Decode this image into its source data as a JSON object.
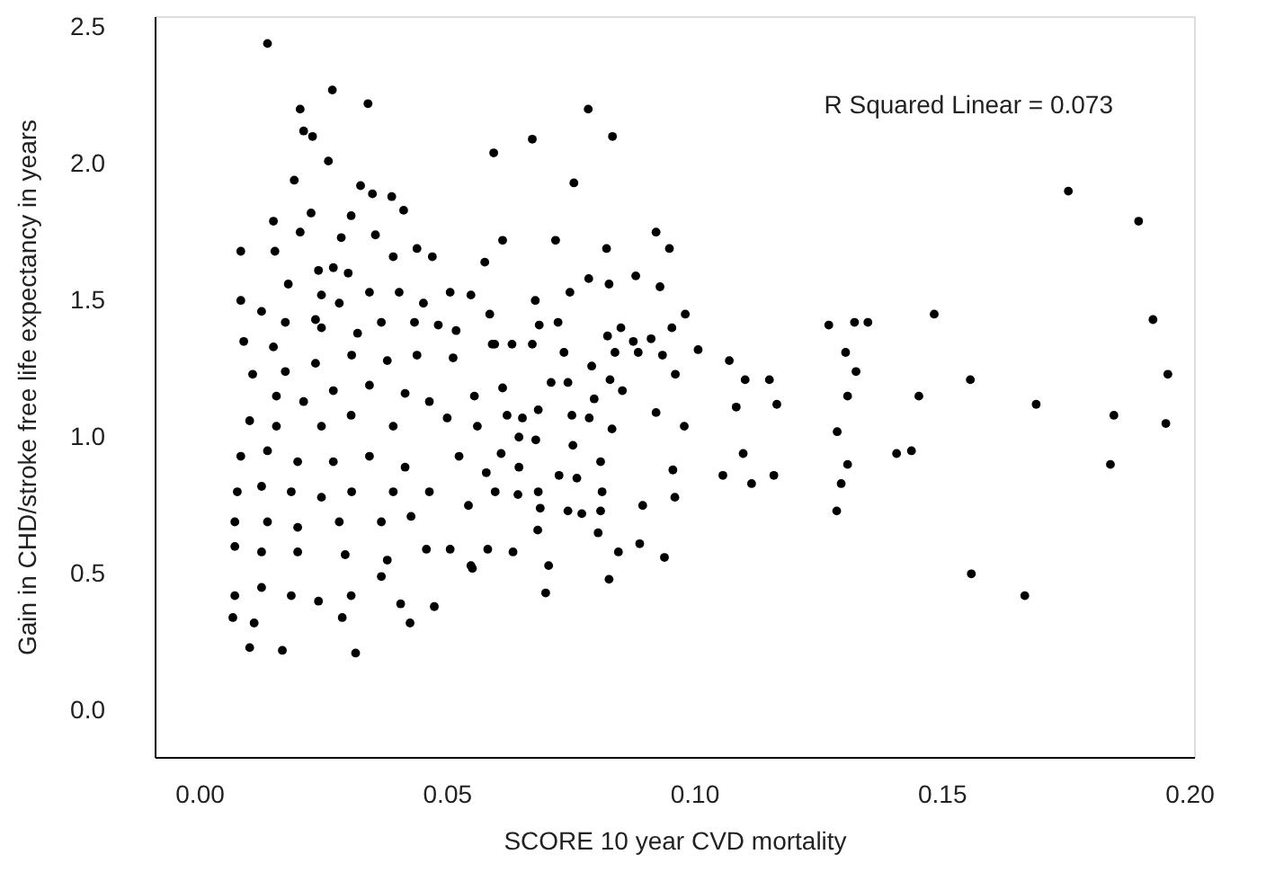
{
  "chart_data": {
    "type": "scatter",
    "xlabel": "SCORE 10 year CVD mortality",
    "ylabel": "Gain in CHD/stroke free life expectancy in years",
    "annotations": [
      "R Squared Linear = 0.073"
    ],
    "xlim": [
      -0.009,
      0.201
    ],
    "ylim": [
      -0.17,
      2.54
    ],
    "xticks": [
      {
        "value": 0,
        "label": "0.00"
      },
      {
        "value": 0.05,
        "label": "0.05"
      },
      {
        "value": 0.1,
        "label": "0.10"
      },
      {
        "value": 0.15,
        "label": "0.15"
      },
      {
        "value": 0.2,
        "label": "0.20"
      }
    ],
    "yticks": [
      {
        "value": 0,
        "label": "0.0"
      },
      {
        "value": 0.5,
        "label": "0.5"
      },
      {
        "value": 1,
        "label": "1.0"
      },
      {
        "value": 1.5,
        "label": "1.5"
      },
      {
        "value": 2,
        "label": "2.0"
      },
      {
        "value": 2.5,
        "label": "2.5"
      }
    ],
    "grid": false,
    "marker": "circle",
    "series": [
      {
        "color": "#000000",
        "x": [
          0.1756,
          0.1898,
          0.1927,
          0.1957,
          0.1953,
          0.1848,
          0.1841,
          0.1691,
          0.1668,
          0.156,
          0.1558,
          0.1485,
          0.1454,
          0.1439,
          0.1409,
          0.1351,
          0.1324,
          0.1272,
          0.1306,
          0.1327,
          0.131,
          0.1289,
          0.131,
          0.1297,
          0.1288,
          0.1167,
          0.1152,
          0.1103,
          0.1071,
          0.1085,
          0.1099,
          0.1116,
          0.1161,
          0.1058,
          0.1008,
          0.0982,
          0.095,
          0.0923,
          0.0955,
          0.0962,
          0.098,
          0.0957,
          0.0961,
          0.094,
          0.089,
          0.0896,
          0.0923,
          0.0936,
          0.0913,
          0.0931,
          0.0882,
          0.0828,
          0.0823,
          0.0787,
          0.0786,
          0.0835,
          0.0757,
          0.0673,
          0.0595,
          0.0613,
          0.072,
          0.0749,
          0.0679,
          0.0725,
          0.0687,
          0.0852,
          0.0825,
          0.0877,
          0.084,
          0.0887,
          0.0737,
          0.0673,
          0.0632,
          0.0597,
          0.0793,
          0.0745,
          0.0711,
          0.083,
          0.0855,
          0.0798,
          0.0685,
          0.0653,
          0.0753,
          0.0788,
          0.0834,
          0.068,
          0.0755,
          0.0811,
          0.0727,
          0.0763,
          0.0814,
          0.0685,
          0.0689,
          0.0745,
          0.0773,
          0.0811,
          0.0806,
          0.0684,
          0.0847,
          0.0706,
          0.0828,
          0.07,
          0.0634,
          0.0583,
          0.0552,
          0.0598,
          0.0644,
          0.0646,
          0.061,
          0.0646,
          0.0622,
          0.0613,
          0.0592,
          0.0587,
          0.0577,
          0.0138,
          0.0269,
          0.0204,
          0.0341,
          0.0211,
          0.0229,
          0.0261,
          0.0192,
          0.015,
          0.0226,
          0.0204,
          0.0326,
          0.035,
          0.0389,
          0.0413,
          0.0307,
          0.0287,
          0.0356,
          0.0084,
          0.0153,
          0.044,
          0.0471,
          0.0392,
          0.0241,
          0.0271,
          0.0301,
          0.0084,
          0.018,
          0.0247,
          0.0344,
          0.0404,
          0.0507,
          0.0549,
          0.0126,
          0.0174,
          0.0235,
          0.0283,
          0.0453,
          0.009,
          0.015,
          0.0247,
          0.032,
          0.0368,
          0.0435,
          0.0483,
          0.0519,
          0.0108,
          0.0174,
          0.0235,
          0.0308,
          0.038,
          0.044,
          0.0513,
          0.0156,
          0.0211,
          0.0271,
          0.0344,
          0.0416,
          0.0465,
          0.0556,
          0.0102,
          0.0156,
          0.0247,
          0.0307,
          0.0392,
          0.0501,
          0.0562,
          0.0084,
          0.0138,
          0.0199,
          0.0271,
          0.0344,
          0.0416,
          0.0525,
          0.058,
          0.0077,
          0.0126,
          0.0186,
          0.0247,
          0.0308,
          0.0392,
          0.0465,
          0.0544,
          0.0072,
          0.0138,
          0.0199,
          0.0283,
          0.0368,
          0.0428,
          0.0072,
          0.0126,
          0.0199,
          0.0295,
          0.038,
          0.0459,
          0.0507,
          0.0072,
          0.0126,
          0.0186,
          0.0241,
          0.0307,
          0.0368,
          0.0068,
          0.0111,
          0.0289,
          0.0407,
          0.0426,
          0.0475,
          0.0549,
          0.0102,
          0.0168,
          0.0316
        ],
        "values": [
          1.9,
          1.79,
          1.43,
          1.23,
          1.05,
          1.08,
          0.9,
          1.12,
          0.42,
          0.5,
          1.21,
          1.45,
          1.15,
          0.95,
          0.94,
          1.42,
          1.42,
          1.41,
          1.31,
          1.24,
          1.15,
          1.02,
          0.9,
          0.83,
          0.73,
          1.12,
          1.21,
          1.21,
          1.28,
          1.11,
          0.94,
          0.83,
          0.86,
          0.86,
          1.32,
          1.45,
          1.69,
          1.75,
          1.4,
          1.23,
          1.04,
          0.88,
          0.78,
          0.56,
          0.61,
          0.75,
          1.09,
          1.3,
          1.36,
          1.55,
          1.59,
          1.56,
          1.69,
          1.58,
          2.2,
          2.1,
          1.93,
          2.09,
          2.04,
          1.72,
          1.72,
          1.53,
          1.5,
          1.42,
          1.41,
          1.4,
          1.37,
          1.35,
          1.31,
          1.31,
          1.31,
          1.34,
          1.34,
          1.34,
          1.26,
          1.2,
          1.2,
          1.21,
          1.17,
          1.14,
          1.1,
          1.07,
          1.08,
          1.07,
          1.03,
          0.99,
          0.97,
          0.91,
          0.86,
          0.85,
          0.8,
          0.8,
          0.74,
          0.73,
          0.72,
          0.73,
          0.65,
          0.66,
          0.58,
          0.53,
          0.48,
          0.43,
          0.58,
          0.59,
          0.52,
          0.8,
          0.79,
          0.89,
          0.94,
          1.0,
          1.08,
          1.18,
          1.34,
          1.45,
          1.64,
          2.44,
          2.27,
          2.2,
          2.22,
          2.12,
          2.1,
          2.01,
          1.94,
          1.79,
          1.82,
          1.75,
          1.92,
          1.89,
          1.88,
          1.83,
          1.81,
          1.73,
          1.74,
          1.68,
          1.68,
          1.69,
          1.66,
          1.66,
          1.61,
          1.62,
          1.6,
          1.5,
          1.56,
          1.52,
          1.53,
          1.53,
          1.53,
          1.52,
          1.46,
          1.42,
          1.43,
          1.49,
          1.49,
          1.35,
          1.33,
          1.4,
          1.38,
          1.42,
          1.42,
          1.41,
          1.39,
          1.23,
          1.24,
          1.27,
          1.3,
          1.28,
          1.3,
          1.29,
          1.15,
          1.13,
          1.17,
          1.19,
          1.16,
          1.13,
          1.15,
          1.06,
          1.04,
          1.04,
          1.08,
          1.04,
          1.07,
          1.04,
          0.93,
          0.95,
          0.91,
          0.91,
          0.93,
          0.89,
          0.93,
          0.87,
          0.8,
          0.82,
          0.8,
          0.78,
          0.8,
          0.8,
          0.8,
          0.75,
          0.69,
          0.69,
          0.67,
          0.69,
          0.69,
          0.71,
          0.6,
          0.58,
          0.58,
          0.57,
          0.55,
          0.59,
          0.59,
          0.42,
          0.45,
          0.42,
          0.4,
          0.42,
          0.49,
          0.34,
          0.32,
          0.34,
          0.39,
          0.32,
          0.38,
          0.53,
          0.23,
          0.22,
          0.21
        ]
      }
    ]
  }
}
